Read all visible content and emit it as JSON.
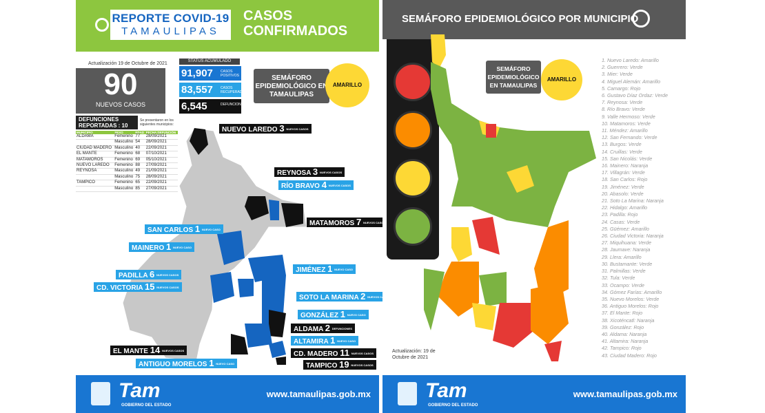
{
  "left": {
    "report_title": "REPORTE COVID-19",
    "report_subtitle": "TAMAULIPAS",
    "heading": "CASOS CONFIRMADOS",
    "updated": "Actualización 19 de Octubre de 2021",
    "new_cases": {
      "value": "90",
      "label": "NUEVOS CASOS"
    },
    "status_label": "STATUS ACUMULADO",
    "stats": [
      {
        "value": "91,907",
        "label": "CASOS POSITIVOS",
        "color": "#1976d2"
      },
      {
        "value": "83,557",
        "label": "CASOS RECUPERADOS",
        "color": "#29a3e6"
      },
      {
        "value": "6,545",
        "label": "DEFUNCIONES",
        "color": "#111111"
      }
    ],
    "semaforo_label": "SEMÁFORO EPIDEMIOLÓGICO EN TAMAULIPAS",
    "semaforo_value": "AMARILLO",
    "deaths_header": "DEFUNCIONES REPORTADAS : 10",
    "deaths_note": "Se presentaron en los siguientes municipios:",
    "deaths_columns": [
      "MUNICIPIO",
      "SEXO",
      "EDAD",
      "FECHA DEFUNCIÓN"
    ],
    "deaths_rows": [
      [
        "ALDAMA",
        "Femenino",
        "77",
        "28/09/2021"
      ],
      [
        "",
        "Masculino",
        "54",
        "28/09/2021"
      ],
      [
        "CIUDAD MADERO",
        "Masculino",
        "40",
        "22/09/2021"
      ],
      [
        "EL MANTE",
        "Femenino",
        "68",
        "07/10/2021"
      ],
      [
        "MATAMOROS",
        "Femenino",
        "69",
        "05/10/2021"
      ],
      [
        "NUEVO LAREDO",
        "Femenino",
        "88",
        "27/09/2021"
      ],
      [
        "REYNOSA",
        "Masculino",
        "49",
        "21/09/2021"
      ],
      [
        "",
        "Masculino",
        "75",
        "28/09/2021"
      ],
      [
        "TAMPICO",
        "Femenino",
        "65",
        "22/09/2021"
      ],
      [
        "",
        "Masculino",
        "85",
        "27/09/2021"
      ]
    ],
    "map_labels": [
      {
        "name": "NUEVO LAREDO",
        "n": "3",
        "s": "NUEVOS CASOS",
        "style": "black"
      },
      {
        "name": "REYNOSA",
        "n": "3",
        "s": "NUEVOS CASOS",
        "style": "black"
      },
      {
        "name": "RÍO BRAVO",
        "n": "4",
        "s": "NUEVOS CASOS",
        "style": "blue"
      },
      {
        "name": "MATAMOROS",
        "n": "7",
        "s": "NUEVOS CASOS",
        "style": "black"
      },
      {
        "name": "SAN CARLOS",
        "n": "1",
        "s": "NUEVO CASO",
        "style": "blue"
      },
      {
        "name": "MAINERO",
        "n": "1",
        "s": "NUEVO CASO",
        "style": "blue"
      },
      {
        "name": "JIMÉNEZ",
        "n": "1",
        "s": "NUEVO CASO",
        "style": "blue"
      },
      {
        "name": "PADILLA",
        "n": "6",
        "s": "NUEVOS CASOS",
        "style": "blue"
      },
      {
        "name": "CD. VICTORIA",
        "n": "15",
        "s": "NUEVOS CASOS",
        "style": "blue"
      },
      {
        "name": "SOTO LA MARINA",
        "n": "2",
        "s": "NUEVOS CASOS",
        "style": "blue"
      },
      {
        "name": "GONZÁLEZ",
        "n": "1",
        "s": "NUEVO CASO",
        "style": "blue"
      },
      {
        "name": "ALDAMA",
        "n": "2",
        "s": "DEFUNCIONES",
        "style": "black"
      },
      {
        "name": "ALTAMIRA",
        "n": "1",
        "s": "NUEVO CASO",
        "style": "blue"
      },
      {
        "name": "EL MANTE",
        "n": "14",
        "s": "NUEVOS CASOS",
        "style": "black"
      },
      {
        "name": "CD. MADERO",
        "n": "11",
        "s": "NUEVOS CASOS",
        "style": "black"
      },
      {
        "name": "ANTIGUO MORELOS",
        "n": "1",
        "s": "NUEVO CASO",
        "style": "blue"
      },
      {
        "name": "TAMPICO",
        "n": "19",
        "s": "NUEVOS CASOS",
        "style": "black"
      }
    ],
    "footer_logo": "Tam",
    "footer_gob": "GOBIERNO DEL ESTADO",
    "footer_url": "www.tamaulipas.gob.mx"
  },
  "right": {
    "heading": "SEMÁFORO EPIDEMIOLÓGICO POR MUNICIPIO",
    "semaforo_label": "SEMÁFORO EPIDEMIOLÓGICO EN TAMAULIPAS",
    "semaforo_value": "AMARILLO",
    "updated": "Actualización: 19 de Octubre de 2021",
    "lamp_colors": [
      "#e53935",
      "#fb8c00",
      "#fdd835",
      "#7cb342"
    ],
    "municipios": [
      "1.  Nuevo Laredo: Amarillo",
      "2.  Guerrero: Verde",
      "3.  Mier: Verde",
      "4.  Miguel Alemán: Amarillo",
      "5.  Camargo: Rojo",
      "6.  Gustavo Díaz Ordaz: Verde",
      "7.  Reynosa: Verde",
      "8.  Río Bravo: Verde",
      "9.  Valle Hermoso: Verde",
      "10. Matamoros: Verde",
      "11. Méndez: Amarillo",
      "12. San Fernando: Verde",
      "13. Burgos: Verde",
      "14. Cruillas: Verde",
      "15. San Nicolás: Verde",
      "16. Mainero: Naranja",
      "17. Villagrán: Verde",
      "18. San Carlos: Rojo",
      "19. Jiménez: Verde",
      "20. Abasolo: Verde",
      "21. Soto La Marina: Naranja",
      "22. Hidalgo: Amarillo",
      "23. Padilla: Rojo",
      "24. Casas: Verde",
      "25. Güémez: Amarillo",
      "26. Ciudad Victoria: Naranja",
      "27. Miquihuana: Verde",
      "28. Jaumave: Naranja",
      "29. Llera: Amarillo",
      "30. Bustamante: Verde",
      "31. Palmillas: Verde",
      "32. Tula: Verde",
      "33. Ocampo: Verde",
      "34. Gómez Farías: Amarillo",
      "35. Nuevo Morelos: Verde",
      "36. Antiguo Morelos: Rojo",
      "37. El Mante: Rojo",
      "38. Xicoténcatl: Naranja",
      "39. González: Rojo",
      "40. Aldama: Naranja",
      "41. Altamira: Naranja",
      "42. Tampico: Rojo",
      "43. Ciudad Madero: Rojo"
    ],
    "footer_logo": "Tam",
    "footer_gob": "GOBIERNO DEL ESTADO",
    "footer_url": "www.tamaulipas.gob.mx"
  }
}
